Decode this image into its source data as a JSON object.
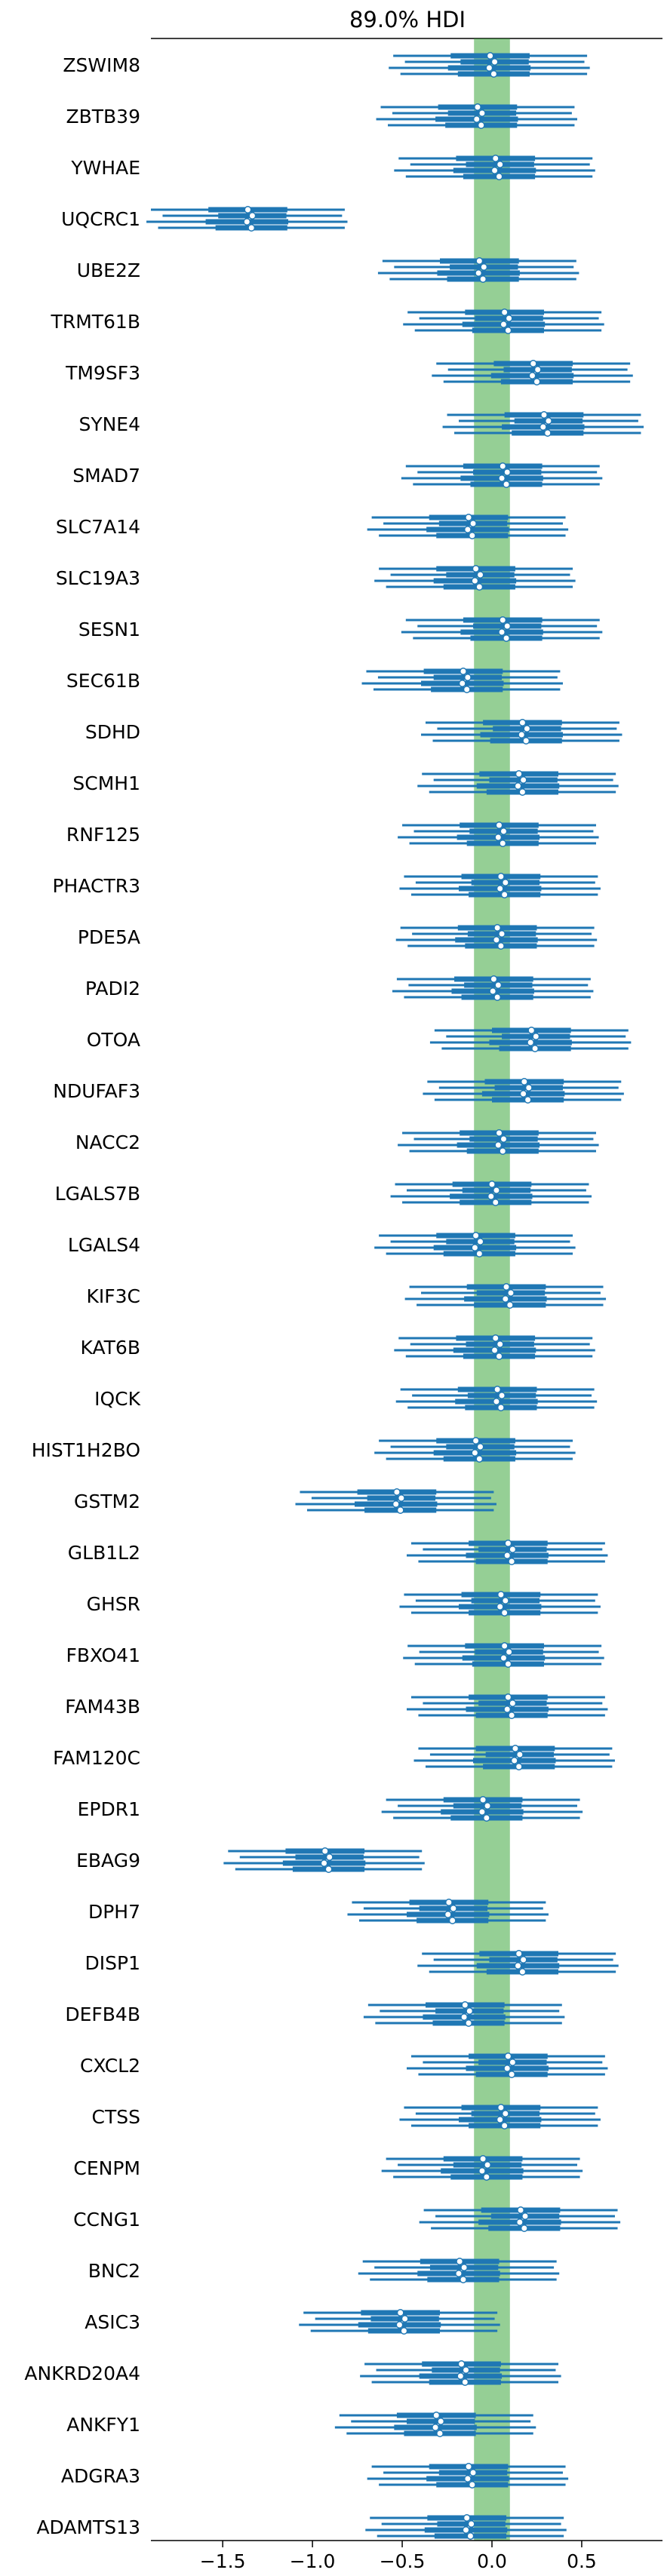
{
  "chart_data": {
    "type": "forest",
    "title": "89.0% HDI",
    "xlim": [
      -1.9,
      0.95
    ],
    "xticks": [
      -1.5,
      -1.0,
      -0.5,
      0.0,
      0.5
    ],
    "xtick_labels": [
      "−1.5",
      "−1.0",
      "−0.5",
      "0.0",
      "0.5"
    ],
    "rope": [
      -0.1,
      0.1
    ],
    "colors": {
      "line": "#1f77b4",
      "rope": "#2ca02c",
      "point_fill": "#ffffff"
    },
    "series_count": 4,
    "genes": [
      {
        "name": "ZSWIM8",
        "mean": 0.0,
        "spread": 1.0
      },
      {
        "name": "ZBTB39",
        "mean": -0.07,
        "spread": 1.0
      },
      {
        "name": "YWHAE",
        "mean": 0.03,
        "spread": 1.0
      },
      {
        "name": "UQCRC1",
        "mean": -1.35,
        "spread": 1.0
      },
      {
        "name": "UBE2Z",
        "mean": -0.06,
        "spread": 1.0
      },
      {
        "name": "TRMT61B",
        "mean": 0.08,
        "spread": 1.0
      },
      {
        "name": "TM9SF3",
        "mean": 0.24,
        "spread": 1.0
      },
      {
        "name": "SYNE4",
        "mean": 0.3,
        "spread": 1.0
      },
      {
        "name": "SMAD7",
        "mean": 0.07,
        "spread": 1.0
      },
      {
        "name": "SLC7A14",
        "mean": -0.12,
        "spread": 1.0
      },
      {
        "name": "SLC19A3",
        "mean": -0.08,
        "spread": 1.0
      },
      {
        "name": "SESN1",
        "mean": 0.07,
        "spread": 1.0
      },
      {
        "name": "SEC61B",
        "mean": -0.15,
        "spread": 1.0
      },
      {
        "name": "SDHD",
        "mean": 0.18,
        "spread": 1.0
      },
      {
        "name": "SCMH1",
        "mean": 0.16,
        "spread": 1.0
      },
      {
        "name": "RNF125",
        "mean": 0.05,
        "spread": 1.0
      },
      {
        "name": "PHACTR3",
        "mean": 0.06,
        "spread": 1.0
      },
      {
        "name": "PDE5A",
        "mean": 0.04,
        "spread": 1.0
      },
      {
        "name": "PADI2",
        "mean": 0.02,
        "spread": 1.0
      },
      {
        "name": "OTOA",
        "mean": 0.23,
        "spread": 1.0
      },
      {
        "name": "NDUFAF3",
        "mean": 0.19,
        "spread": 1.0
      },
      {
        "name": "NACC2",
        "mean": 0.05,
        "spread": 1.0
      },
      {
        "name": "LGALS7B",
        "mean": 0.01,
        "spread": 1.0
      },
      {
        "name": "LGALS4",
        "mean": -0.08,
        "spread": 1.0
      },
      {
        "name": "KIF3C",
        "mean": 0.09,
        "spread": 1.0
      },
      {
        "name": "KAT6B",
        "mean": 0.03,
        "spread": 1.0
      },
      {
        "name": "IQCK",
        "mean": 0.04,
        "spread": 1.0
      },
      {
        "name": "HIST1H2BO",
        "mean": -0.08,
        "spread": 1.0
      },
      {
        "name": "GSTM2",
        "mean": -0.52,
        "spread": 1.0
      },
      {
        "name": "GLB1L2",
        "mean": 0.1,
        "spread": 1.0
      },
      {
        "name": "GHSR",
        "mean": 0.06,
        "spread": 1.0
      },
      {
        "name": "FBXO41",
        "mean": 0.08,
        "spread": 1.0
      },
      {
        "name": "FAM43B",
        "mean": 0.1,
        "spread": 1.0
      },
      {
        "name": "FAM120C",
        "mean": 0.14,
        "spread": 1.0
      },
      {
        "name": "EPDR1",
        "mean": -0.04,
        "spread": 1.0
      },
      {
        "name": "EBAG9",
        "mean": -0.92,
        "spread": 1.0
      },
      {
        "name": "DPH7",
        "mean": -0.23,
        "spread": 1.0
      },
      {
        "name": "DISP1",
        "mean": 0.16,
        "spread": 1.0
      },
      {
        "name": "DEFB4B",
        "mean": -0.14,
        "spread": 1.0
      },
      {
        "name": "CXCL2",
        "mean": 0.1,
        "spread": 1.0
      },
      {
        "name": "CTSS",
        "mean": 0.06,
        "spread": 1.0
      },
      {
        "name": "CENPM",
        "mean": -0.04,
        "spread": 1.0
      },
      {
        "name": "CCNG1",
        "mean": 0.17,
        "spread": 1.0
      },
      {
        "name": "BNC2",
        "mean": -0.17,
        "spread": 1.0
      },
      {
        "name": "ASIC3",
        "mean": -0.5,
        "spread": 1.0
      },
      {
        "name": "ANKRD20A4",
        "mean": -0.16,
        "spread": 1.0
      },
      {
        "name": "ANKFY1",
        "mean": -0.3,
        "spread": 1.0
      },
      {
        "name": "ADGRA3",
        "mean": -0.12,
        "spread": 1.0
      },
      {
        "name": "ADAMTS13",
        "mean": -0.13,
        "spread": 1.0
      }
    ]
  }
}
